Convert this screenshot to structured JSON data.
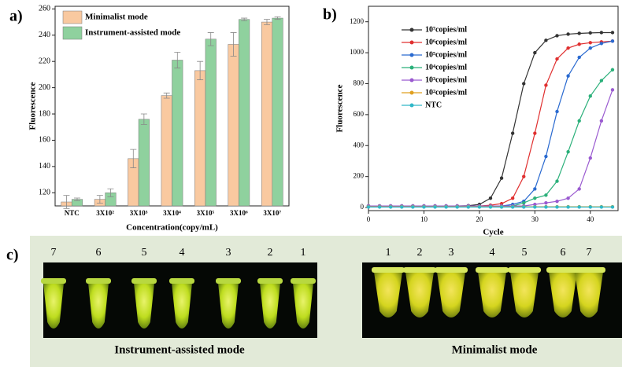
{
  "chart_data": [
    {
      "type": "bar",
      "panel": "a)",
      "xlabel": "Concentration(copy/mL)",
      "ylabel": "Fluorescence",
      "categories": [
        "NTC",
        "3X10²",
        "3X10³",
        "3X10⁴",
        "3X10⁵",
        "3X10⁶",
        "3X10⁷"
      ],
      "series": [
        {
          "name": "Minimalist mode",
          "color": "#f9c9a0",
          "values": [
            113,
            115,
            146,
            194,
            213,
            233,
            250
          ],
          "errors": [
            5,
            3,
            7,
            2,
            7,
            9,
            2
          ]
        },
        {
          "name": "Instrument-assisted mode",
          "color": "#8fd19e",
          "values": [
            115,
            120,
            176,
            221,
            237,
            252,
            253
          ],
          "errors": [
            1,
            3,
            4,
            6,
            5,
            1,
            1
          ]
        }
      ],
      "ylim": [
        110,
        262
      ],
      "yticks": [
        120,
        140,
        160,
        180,
        200,
        220,
        240,
        260
      ],
      "legend": "top-left"
    },
    {
      "type": "line",
      "panel": "b)",
      "xlabel": "Cycle",
      "ylabel": "Fluorescence",
      "x": [
        0,
        2,
        4,
        6,
        8,
        10,
        12,
        14,
        16,
        18,
        20,
        22,
        24,
        26,
        28,
        30,
        32,
        34,
        36,
        38,
        40,
        42,
        44
      ],
      "series": [
        {
          "name": "10⁷copies/ml",
          "color": "#333333",
          "values": [
            10,
            10,
            10,
            10,
            10,
            10,
            10,
            10,
            10,
            12,
            20,
            60,
            190,
            480,
            800,
            1000,
            1080,
            1110,
            1120,
            1125,
            1128,
            1130,
            1130
          ]
        },
        {
          "name": "10⁶copies/ml",
          "color": "#e03030",
          "values": [
            10,
            10,
            10,
            10,
            10,
            10,
            10,
            10,
            10,
            10,
            10,
            15,
            25,
            60,
            200,
            480,
            790,
            960,
            1030,
            1055,
            1065,
            1070,
            1075
          ]
        },
        {
          "name": "10⁵copies/ml",
          "color": "#2a6ad0",
          "values": [
            10,
            10,
            10,
            10,
            10,
            10,
            10,
            10,
            10,
            10,
            10,
            10,
            10,
            20,
            40,
            120,
            330,
            620,
            850,
            970,
            1030,
            1060,
            1075
          ]
        },
        {
          "name": "10⁴copies/ml",
          "color": "#2bb07a",
          "values": [
            10,
            10,
            10,
            10,
            10,
            10,
            10,
            10,
            10,
            10,
            10,
            10,
            10,
            10,
            30,
            60,
            80,
            170,
            360,
            560,
            720,
            820,
            890
          ]
        },
        {
          "name": "10³copies/ml",
          "color": "#9a5ad0",
          "values": [
            10,
            10,
            10,
            10,
            10,
            10,
            10,
            10,
            10,
            10,
            10,
            10,
            10,
            10,
            10,
            20,
            30,
            40,
            60,
            120,
            320,
            560,
            760
          ]
        },
        {
          "name": "10²copies/ml",
          "color": "#e0a020",
          "values": [
            5,
            5,
            5,
            5,
            5,
            5,
            5,
            5,
            5,
            5,
            5,
            5,
            5,
            5,
            5,
            5,
            5,
            5,
            5,
            5,
            5,
            5,
            5
          ]
        },
        {
          "name": "NTC",
          "color": "#30b8c8",
          "values": [
            3,
            3,
            3,
            3,
            3,
            3,
            3,
            3,
            3,
            3,
            3,
            3,
            3,
            3,
            3,
            3,
            3,
            3,
            3,
            3,
            3,
            3,
            3
          ]
        }
      ],
      "xlim": [
        0,
        45
      ],
      "xticks": [
        0,
        10,
        20,
        30,
        40
      ],
      "ylim": [
        -20,
        1300
      ],
      "yticks": [
        0,
        200,
        400,
        600,
        800,
        1000,
        1200
      ],
      "legend": "top-left"
    }
  ],
  "photos": {
    "panel": "c)",
    "groups": [
      {
        "caption": "Instrument-assisted mode",
        "tube_labels": [
          "7",
          "6",
          "5",
          "4",
          "3",
          "2",
          "1"
        ]
      },
      {
        "caption": "Minimalist mode",
        "tube_labels": [
          "1",
          "2",
          "3",
          "4",
          "5",
          "6",
          "7"
        ]
      }
    ]
  }
}
